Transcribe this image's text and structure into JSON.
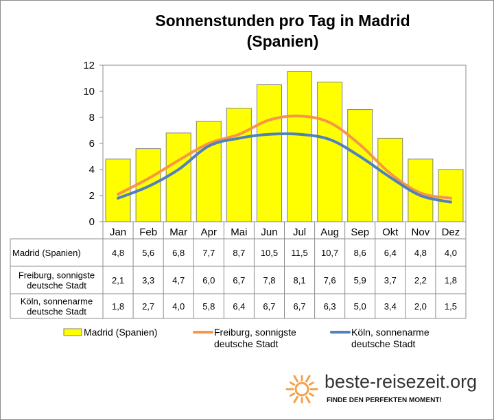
{
  "chart_data": {
    "type": "bar",
    "title_lines": [
      "Sonnenstunden pro Tag in Madrid",
      "(Spanien)"
    ],
    "categories": [
      "Jan",
      "Feb",
      "Mar",
      "Apr",
      "Mai",
      "Jun",
      "Jul",
      "Aug",
      "Sep",
      "Okt",
      "Nov",
      "Dez"
    ],
    "ylim": [
      0,
      12
    ],
    "yticks": [
      0,
      2,
      4,
      6,
      8,
      10,
      12
    ],
    "grid": false,
    "legend_position": "bottom",
    "data_table": true,
    "series": [
      {
        "name": "Madrid (Spanien)",
        "name_lines": [
          "Madrid (Spanien)"
        ],
        "table_label_lines": [
          "Madrid (Spanien)"
        ],
        "type": "bar",
        "color": "#ffff00",
        "values": [
          4.8,
          5.6,
          6.8,
          7.7,
          8.7,
          10.5,
          11.5,
          10.7,
          8.6,
          6.4,
          4.8,
          4.0
        ],
        "display": [
          "4,8",
          "5,6",
          "6,8",
          "7,7",
          "8,7",
          "10,5",
          "11,5",
          "10,7",
          "8,6",
          "6,4",
          "4,8",
          "4,0"
        ]
      },
      {
        "name": "Freiburg, sonnigste deutsche Stadt",
        "name_lines": [
          "Freiburg, sonnigste",
          "deutsche Stadt"
        ],
        "table_label_lines": [
          "Freiburg, sonnigste",
          "deutsche Stadt"
        ],
        "type": "line",
        "color": "#f79646",
        "values": [
          2.1,
          3.3,
          4.7,
          6.0,
          6.7,
          7.8,
          8.1,
          7.6,
          5.9,
          3.7,
          2.2,
          1.8
        ],
        "display": [
          "2,1",
          "3,3",
          "4,7",
          "6,0",
          "6,7",
          "7,8",
          "8,1",
          "7,6",
          "5,9",
          "3,7",
          "2,2",
          "1,8"
        ]
      },
      {
        "name": "Köln, sonnenarme deutsche Stadt",
        "name_lines": [
          "Köln, sonnenarme",
          "deutsche Stadt"
        ],
        "table_label_lines": [
          "Köln, sonnenarme",
          "deutsche Stadt"
        ],
        "type": "line",
        "color": "#4f81bd",
        "values": [
          1.8,
          2.7,
          4.0,
          5.8,
          6.4,
          6.7,
          6.7,
          6.3,
          5.0,
          3.4,
          2.0,
          1.5
        ],
        "display": [
          "1,8",
          "2,7",
          "4,0",
          "5,8",
          "6,4",
          "6,7",
          "6,7",
          "6,3",
          "5,0",
          "3,4",
          "2,0",
          "1,5"
        ]
      }
    ]
  },
  "branding": {
    "name": "beste-reisezeit.org",
    "tagline": "FINDE DEN PERFEKTEN MOMENT!",
    "sun_icon": "sun-icon",
    "sun_color": "#f5a04a"
  }
}
